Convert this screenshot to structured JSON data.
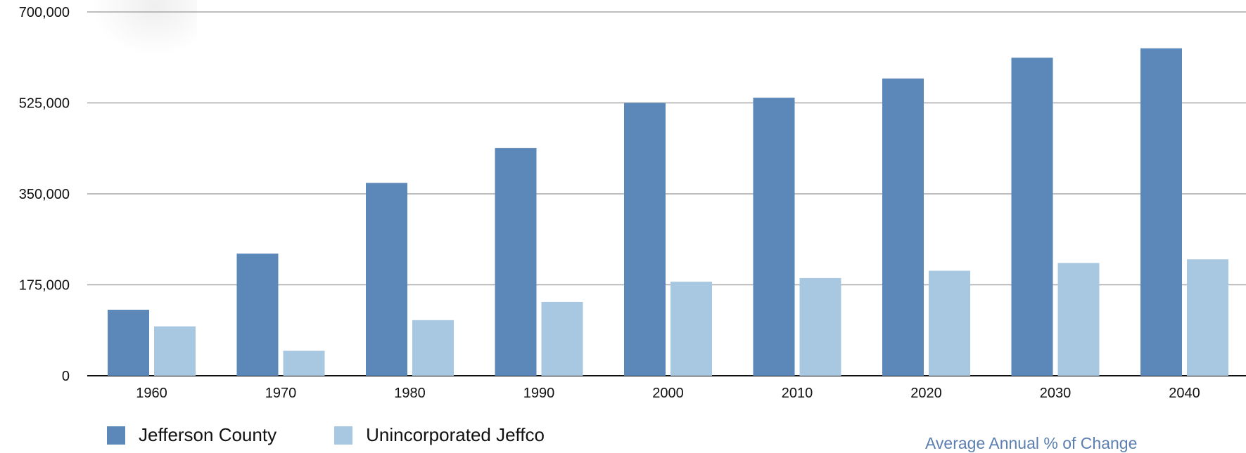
{
  "chart_data": {
    "type": "bar",
    "categories": [
      "1960",
      "1970",
      "1980",
      "1990",
      "2000",
      "2010",
      "2020",
      "2030",
      "2040"
    ],
    "series": [
      {
        "name": "Jefferson County",
        "color": "#5b87b9",
        "values": [
          127000,
          235000,
          371000,
          438000,
          525000,
          535000,
          572000,
          612000,
          630000
        ]
      },
      {
        "name": "Unincorporated Jeffco",
        "color": "#a8c8e2",
        "values": [
          95000,
          48000,
          107000,
          142000,
          181000,
          188000,
          202000,
          217000,
          224000
        ]
      }
    ],
    "yticks": [
      "0",
      "175,000",
      "350,000",
      "525,000",
      "700,000"
    ],
    "ylim": [
      0,
      700000
    ],
    "grid": true,
    "legend_position": "bottom-left",
    "title": "",
    "xlabel": "",
    "ylabel": ""
  },
  "footnote": "Average Annual % of Change"
}
